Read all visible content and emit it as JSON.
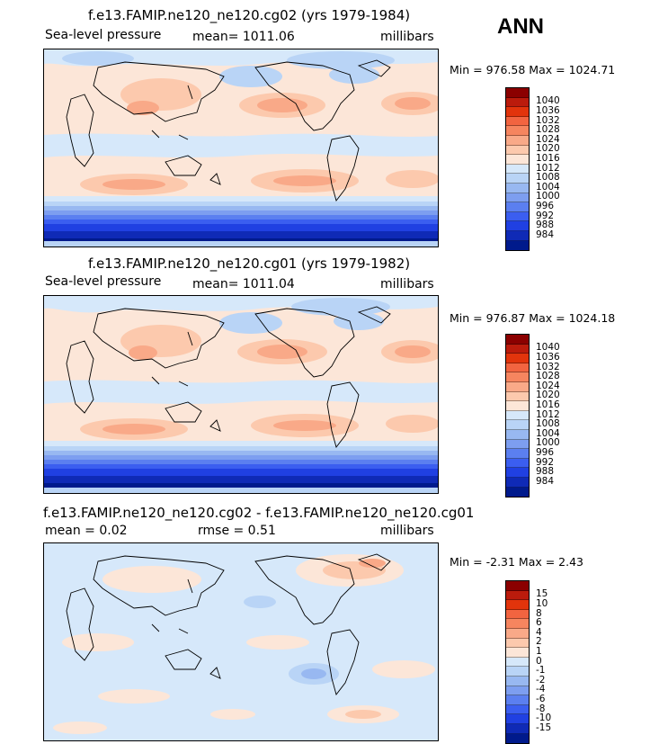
{
  "season": "ANN",
  "panels": [
    {
      "title": "f.e13.FAMIP.ne120_ne120.cg02 (yrs 1979-1984)",
      "left_label": "Sea-level pressure",
      "mid_label": "mean=  1011.06",
      "right_label": "millibars",
      "min_max": "Min = 976.58  Max = 1024.71",
      "colorbar": {
        "colors": [
          "#8b0000",
          "#bb1b0c",
          "#e2340c",
          "#f26440",
          "#f6855f",
          "#f9a988",
          "#fcc9ad",
          "#fce6d8",
          "#d6e8fa",
          "#b9d4f6",
          "#98b8f1",
          "#7d9ef0",
          "#5b7ff0",
          "#3b5ef0",
          "#2040e2",
          "#0f2ab6",
          "#001a8c"
        ],
        "labels": [
          "1040",
          "1036",
          "1032",
          "1028",
          "1024",
          "1020",
          "1016",
          "1012",
          "1008",
          "1004",
          "1000",
          "996",
          "992",
          "988",
          "984"
        ]
      }
    },
    {
      "title": "f.e13.FAMIP.ne120_ne120.cg01 (yrs 1979-1982)",
      "left_label": "Sea-level pressure",
      "mid_label": "mean=  1011.04",
      "right_label": "millibars",
      "min_max": "Min = 976.87  Max = 1024.18",
      "colorbar": {
        "colors": [
          "#8b0000",
          "#bb1b0c",
          "#e2340c",
          "#f26440",
          "#f6855f",
          "#f9a988",
          "#fcc9ad",
          "#fce6d8",
          "#d6e8fa",
          "#b9d4f6",
          "#98b8f1",
          "#7d9ef0",
          "#5b7ff0",
          "#3b5ef0",
          "#2040e2",
          "#0f2ab6",
          "#001a8c"
        ],
        "labels": [
          "1040",
          "1036",
          "1032",
          "1028",
          "1024",
          "1020",
          "1016",
          "1012",
          "1008",
          "1004",
          "1000",
          "996",
          "992",
          "988",
          "984"
        ]
      }
    },
    {
      "title": "f.e13.FAMIP.ne120_ne120.cg02 - f.e13.FAMIP.ne120_ne120.cg01",
      "left_label": "mean =    0.02",
      "mid_label": "rmse =    0.51",
      "right_label": "millibars",
      "min_max": "Min =  -2.31  Max =    2.43",
      "colorbar": {
        "colors": [
          "#8b0000",
          "#bb1b0c",
          "#e2340c",
          "#f26440",
          "#f6855f",
          "#f9a988",
          "#fcc9ad",
          "#fce6d8",
          "#d6e8fa",
          "#b9d4f6",
          "#98b8f1",
          "#7d9ef0",
          "#5b7ff0",
          "#3b5ef0",
          "#2040e2",
          "#0f2ab6",
          "#001a8c"
        ],
        "labels": [
          "15",
          "10",
          "8",
          "6",
          "4",
          "2",
          "1",
          "0",
          "-1",
          "-2",
          "-4",
          "-6",
          "-8",
          "-10",
          "-15"
        ]
      }
    }
  ]
}
